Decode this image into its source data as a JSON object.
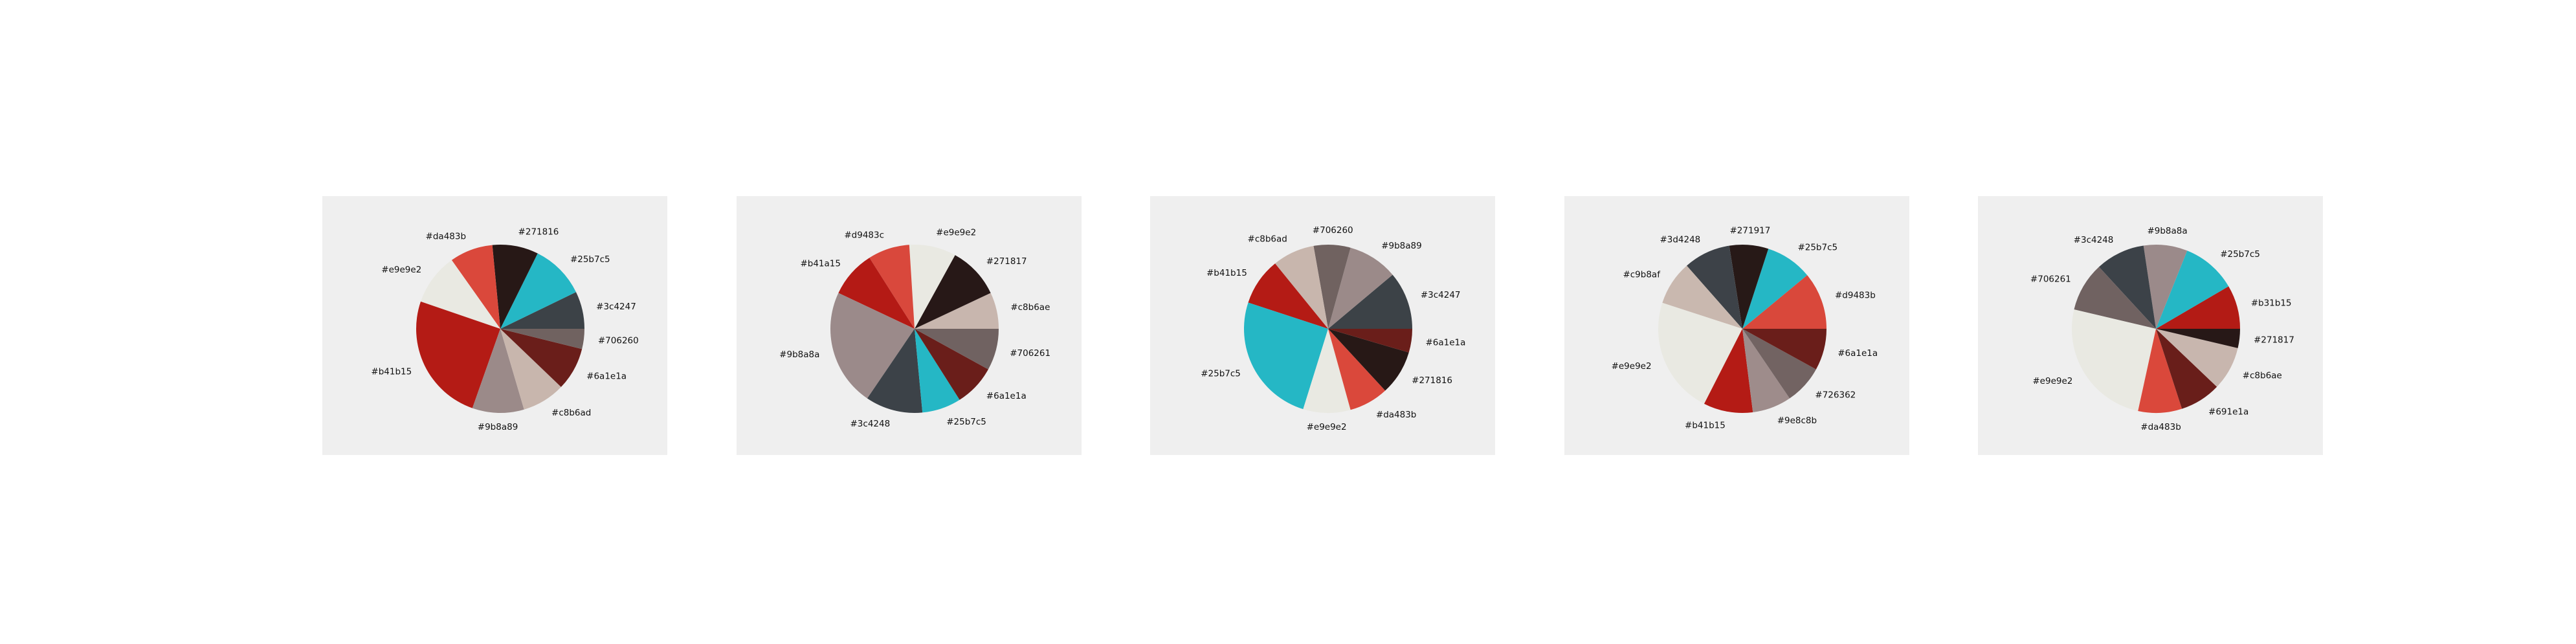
{
  "chart_data": [
    {
      "type": "pie",
      "slices": [
        {
          "label": "#3c4247",
          "value": 6.5,
          "color": "#3c4247"
        },
        {
          "label": "#25b7c5",
          "value": 9.5,
          "color": "#25b7c5"
        },
        {
          "label": "#271816",
          "value": 8,
          "color": "#271816"
        },
        {
          "label": "#da483b",
          "value": 7.5,
          "color": "#da483b"
        },
        {
          "label": "#e9e9e2",
          "value": 9,
          "color": "#e9e9e2"
        },
        {
          "label": "#b41b15",
          "value": 22.5,
          "color": "#b41b15"
        },
        {
          "label": "#9b8a89",
          "value": 9,
          "color": "#9b8a89"
        },
        {
          "label": "#c8b6ad",
          "value": 7.5,
          "color": "#c8b6ad"
        },
        {
          "label": "#6a1e1a",
          "value": 7.5,
          "color": "#6a1e1a"
        },
        {
          "label": "#706260",
          "value": 3.5,
          "color": "#706260"
        }
      ]
    },
    {
      "type": "pie",
      "slices": [
        {
          "label": "#c8b6ae",
          "value": 7,
          "color": "#c8b6ae"
        },
        {
          "label": "#271817",
          "value": 10,
          "color": "#271817"
        },
        {
          "label": "#e9e9e2",
          "value": 9,
          "color": "#e9e9e2"
        },
        {
          "label": "#d9483c",
          "value": 8,
          "color": "#d9483c"
        },
        {
          "label": "#b41a15",
          "value": 9,
          "color": "#b41a15"
        },
        {
          "label": "#9b8a8a",
          "value": 22.5,
          "color": "#9b8a8a"
        },
        {
          "label": "#3c4248",
          "value": 11,
          "color": "#3c4248"
        },
        {
          "label": "#25b7c5",
          "value": 7.5,
          "color": "#25b7c5"
        },
        {
          "label": "#6a1e1a",
          "value": 8,
          "color": "#6a1e1a"
        },
        {
          "label": "#706261",
          "value": 8,
          "color": "#706261"
        }
      ]
    },
    {
      "type": "pie",
      "slices": [
        {
          "label": "#3c4247",
          "value": 11,
          "color": "#3c4247"
        },
        {
          "label": "#9b8a89",
          "value": 9.5,
          "color": "#9b8a89"
        },
        {
          "label": "#706260",
          "value": 7,
          "color": "#706260"
        },
        {
          "label": "#c8b6ad",
          "value": 8,
          "color": "#c8b6ad"
        },
        {
          "label": "#b41b15",
          "value": 9,
          "color": "#b41b15"
        },
        {
          "label": "#25b7c5",
          "value": 25,
          "color": "#25b7c5"
        },
        {
          "label": "#e9e9e2",
          "value": 9,
          "color": "#e9e9e2"
        },
        {
          "label": "#da483b",
          "value": 7.5,
          "color": "#da483b"
        },
        {
          "label": "#271816",
          "value": 8.5,
          "color": "#271816"
        },
        {
          "label": "#6a1e1a",
          "value": 4.5,
          "color": "#6a1e1a"
        }
      ]
    },
    {
      "type": "pie",
      "slices": [
        {
          "label": "#d9483b",
          "value": 11,
          "color": "#d9483b"
        },
        {
          "label": "#25b7c5",
          "value": 9,
          "color": "#25b7c5"
        },
        {
          "label": "#271917",
          "value": 7.5,
          "color": "#271917"
        },
        {
          "label": "#3d4248",
          "value": 9,
          "color": "#3d4248"
        },
        {
          "label": "#c9b8af",
          "value": 8.5,
          "color": "#c9b8af"
        },
        {
          "label": "#e9e9e2",
          "value": 22.5,
          "color": "#e9e9e2"
        },
        {
          "label": "#b41b15",
          "value": 9.5,
          "color": "#b41b15"
        },
        {
          "label": "#9e8c8b",
          "value": 7.5,
          "color": "#9e8c8b"
        },
        {
          "label": "#726362",
          "value": 7.5,
          "color": "#726362"
        },
        {
          "label": "#6a1e1a",
          "value": 8,
          "color": "#6a1e1a"
        }
      ]
    },
    {
      "type": "pie",
      "slices": [
        {
          "label": "#b31b15",
          "value": 8,
          "color": "#b31b15"
        },
        {
          "label": "#25b7c5",
          "value": 10,
          "color": "#25b7c5"
        },
        {
          "label": "#9b8a8a",
          "value": 8,
          "color": "#9b8a8a"
        },
        {
          "label": "#3c4248",
          "value": 9,
          "color": "#3c4248"
        },
        {
          "label": "#706261",
          "value": 9,
          "color": "#706261"
        },
        {
          "label": "#e9e9e2",
          "value": 24,
          "color": "#e9e9e2"
        },
        {
          "label": "#da483b",
          "value": 8,
          "color": "#da483b"
        },
        {
          "label": "#691e1a",
          "value": 7.5,
          "color": "#691e1a"
        },
        {
          "label": "#c8b6ae",
          "value": 8,
          "color": "#c8b6ae"
        },
        {
          "label": "#271817",
          "value": 3.5,
          "color": "#271817"
        }
      ]
    }
  ]
}
